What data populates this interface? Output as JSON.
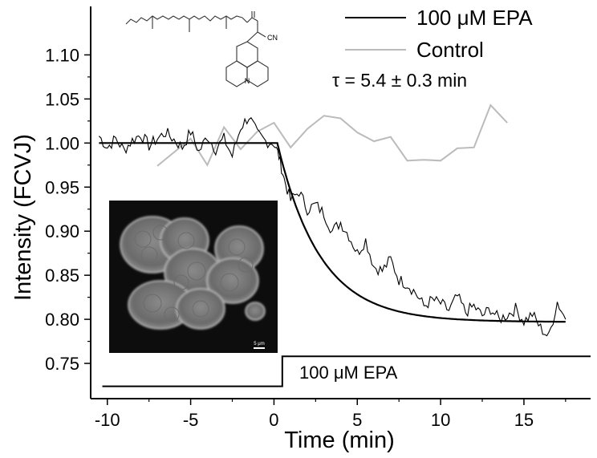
{
  "chart_data": {
    "type": "line",
    "xlabel": "Time (min)",
    "ylabel": "Intensity (FCVJ)",
    "xlim": [
      -11,
      19
    ],
    "ylim": [
      0.71,
      1.155
    ],
    "xticks": [
      -10,
      -5,
      0,
      5,
      10,
      15
    ],
    "xtick_labels": [
      "-10",
      "-5",
      "0",
      "5",
      "10",
      "15"
    ],
    "yticks": [
      0.75,
      0.8,
      0.85,
      0.9,
      0.95,
      1.0,
      1.05,
      1.1
    ],
    "ytick_labels": [
      "0.75",
      "0.80",
      "0.85",
      "0.90",
      "0.95",
      "1.00",
      "1.05",
      "1.10"
    ],
    "grid": false,
    "legend_position": "top-right",
    "series": [
      {
        "name": "100 μM EPA",
        "color": "#000000",
        "style": "noisy trace with fitted exponential",
        "points": [
          [
            -10.5,
            1.008
          ],
          [
            -10.0,
            0.995
          ],
          [
            -9.5,
            1.005
          ],
          [
            -9.0,
            0.992
          ],
          [
            -8.5,
            1.003
          ],
          [
            -8.0,
            1.01
          ],
          [
            -7.5,
            0.997
          ],
          [
            -7.0,
            1.005
          ],
          [
            -6.5,
            1.012
          ],
          [
            -6.0,
            1.004
          ],
          [
            -5.5,
            0.995
          ],
          [
            -5.0,
            1.013
          ],
          [
            -4.5,
            0.99
          ],
          [
            -4.0,
            1.008
          ],
          [
            -3.5,
            0.993
          ],
          [
            -3.0,
            1.005
          ],
          [
            -2.5,
            0.985
          ],
          [
            -2.0,
            1.018
          ],
          [
            -1.5,
            1.03
          ],
          [
            -1.0,
            1.01
          ],
          [
            -0.5,
            1.002
          ],
          [
            0.0,
            1.0
          ],
          [
            0.3,
            0.985
          ],
          [
            0.6,
            0.96
          ],
          [
            1.0,
            0.935
          ],
          [
            1.5,
            0.945
          ],
          [
            2.0,
            0.925
          ],
          [
            2.5,
            0.93
          ],
          [
            3.0,
            0.92
          ],
          [
            3.5,
            0.9
          ],
          [
            4.0,
            0.91
          ],
          [
            4.5,
            0.895
          ],
          [
            5.0,
            0.875
          ],
          [
            5.5,
            0.89
          ],
          [
            6.0,
            0.86
          ],
          [
            6.5,
            0.855
          ],
          [
            7.0,
            0.868
          ],
          [
            7.5,
            0.845
          ],
          [
            8.0,
            0.84
          ],
          [
            8.5,
            0.83
          ],
          [
            9.0,
            0.815
          ],
          [
            9.5,
            0.822
          ],
          [
            10.0,
            0.818
          ],
          [
            10.5,
            0.81
          ],
          [
            11.0,
            0.826
          ],
          [
            11.5,
            0.808
          ],
          [
            12.0,
            0.815
          ],
          [
            12.5,
            0.804
          ],
          [
            13.0,
            0.812
          ],
          [
            13.5,
            0.8
          ],
          [
            14.0,
            0.805
          ],
          [
            14.5,
            0.812
          ],
          [
            15.0,
            0.798
          ],
          [
            15.5,
            0.806
          ],
          [
            16.0,
            0.79
          ],
          [
            16.5,
            0.78
          ],
          [
            17.0,
            0.82
          ],
          [
            17.5,
            0.8
          ]
        ],
        "fit": {
          "t0": 0.2,
          "baseline": 1.0,
          "plateau": 0.797,
          "tau_min": 5.4,
          "x_end": 17.5
        }
      },
      {
        "name": "Control",
        "color": "#bbbbbb",
        "x": [
          -7,
          -5,
          -4,
          -3,
          -2,
          -1,
          0,
          1,
          2,
          3,
          4,
          5,
          6,
          7,
          8,
          9,
          10,
          11,
          12,
          13,
          14
        ],
        "y": [
          0.974,
          1.005,
          0.975,
          1.018,
          0.993,
          1.013,
          1.023,
          0.995,
          1.016,
          1.031,
          1.028,
          1.012,
          1.002,
          1.007,
          0.98,
          0.981,
          0.98,
          0.994,
          0.995,
          1.043,
          1.023
        ]
      }
    ],
    "annotations": {
      "tau_text": "τ = 5.4 ± 0.3 min",
      "stimulus_label": "100 μM EPA",
      "stimulus_step": {
        "off_level": 0.724,
        "on_level": 0.758,
        "on_at": 0.5,
        "x_start": -10.3,
        "x_end": 19
      }
    },
    "inset": {
      "scale_bar_label": "5 μm"
    },
    "structure": {
      "substituent_label": "CN",
      "ring_atom_label": "N"
    }
  }
}
